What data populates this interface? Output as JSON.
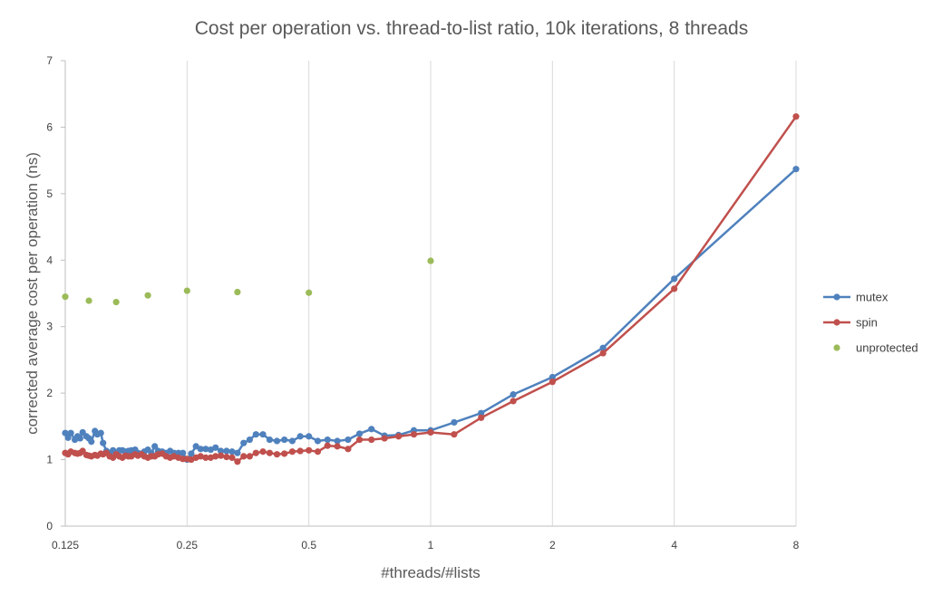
{
  "chart_data": {
    "type": "scatter",
    "title": "Cost per operation vs. thread-to-list ratio, 10k iterations, 8 threads",
    "xlabel": "#threads/#lists",
    "ylabel": "corrected average cost per operation (ns)",
    "x_scale": "log2",
    "xlim": [
      0.125,
      8
    ],
    "ylim": [
      0,
      7
    ],
    "x_ticks": [
      0.125,
      0.25,
      0.5,
      1,
      2,
      4,
      8
    ],
    "x_tick_labels": [
      "0.125",
      "0.25",
      "0.5",
      "1",
      "2",
      "4",
      "8"
    ],
    "y_ticks": [
      0,
      1,
      2,
      3,
      4,
      5,
      6,
      7
    ],
    "y_tick_labels": [
      "0",
      "1",
      "2",
      "3",
      "4",
      "5",
      "6",
      "7"
    ],
    "grid": "vertical",
    "legend_position": "right",
    "series": [
      {
        "name": "mutex",
        "color": "#4f81bd",
        "line": true,
        "points": [
          [
            0.125,
            1.4
          ],
          [
            0.127,
            1.33
          ],
          [
            0.129,
            1.4
          ],
          [
            0.132,
            1.3
          ],
          [
            0.134,
            1.35
          ],
          [
            0.136,
            1.32
          ],
          [
            0.138,
            1.41
          ],
          [
            0.141,
            1.35
          ],
          [
            0.143,
            1.32
          ],
          [
            0.145,
            1.27
          ],
          [
            0.148,
            1.43
          ],
          [
            0.15,
            1.38
          ],
          [
            0.153,
            1.4
          ],
          [
            0.155,
            1.25
          ],
          [
            0.158,
            1.13
          ],
          [
            0.161,
            1.1
          ],
          [
            0.164,
            1.14
          ],
          [
            0.167,
            1.08
          ],
          [
            0.17,
            1.14
          ],
          [
            0.173,
            1.14
          ],
          [
            0.176,
            1.12
          ],
          [
            0.179,
            1.13
          ],
          [
            0.182,
            1.14
          ],
          [
            0.186,
            1.15
          ],
          [
            0.189,
            1.1
          ],
          [
            0.193,
            1.09
          ],
          [
            0.196,
            1.12
          ],
          [
            0.2,
            1.15
          ],
          [
            0.204,
            1.1
          ],
          [
            0.208,
            1.2
          ],
          [
            0.212,
            1.13
          ],
          [
            0.217,
            1.12
          ],
          [
            0.222,
            1.1
          ],
          [
            0.227,
            1.13
          ],
          [
            0.232,
            1.1
          ],
          [
            0.238,
            1.1
          ],
          [
            0.244,
            1.1
          ],
          [
            0.25,
            1.0
          ],
          [
            0.256,
            1.09
          ],
          [
            0.263,
            1.2
          ],
          [
            0.27,
            1.16
          ],
          [
            0.278,
            1.16
          ],
          [
            0.286,
            1.15
          ],
          [
            0.294,
            1.18
          ],
          [
            0.303,
            1.13
          ],
          [
            0.313,
            1.13
          ],
          [
            0.323,
            1.12
          ],
          [
            0.333,
            1.1
          ],
          [
            0.345,
            1.25
          ],
          [
            0.357,
            1.3
          ],
          [
            0.37,
            1.38
          ],
          [
            0.385,
            1.38
          ],
          [
            0.4,
            1.3
          ],
          [
            0.417,
            1.28
          ],
          [
            0.435,
            1.3
          ],
          [
            0.455,
            1.28
          ],
          [
            0.476,
            1.35
          ],
          [
            0.5,
            1.35
          ],
          [
            0.526,
            1.28
          ],
          [
            0.556,
            1.3
          ],
          [
            0.588,
            1.28
          ],
          [
            0.625,
            1.3
          ],
          [
            0.667,
            1.39
          ],
          [
            0.714,
            1.46
          ],
          [
            0.769,
            1.36
          ],
          [
            0.833,
            1.37
          ],
          [
            0.909,
            1.44
          ],
          [
            1.0,
            1.44
          ],
          [
            1.143,
            1.56
          ],
          [
            1.333,
            1.7
          ],
          [
            1.6,
            1.98
          ],
          [
            2.0,
            2.24
          ],
          [
            2.667,
            2.68
          ],
          [
            4.0,
            3.72
          ],
          [
            8.0,
            5.37
          ]
        ]
      },
      {
        "name": "spin",
        "color": "#c0504d",
        "line": true,
        "points": [
          [
            0.125,
            1.1
          ],
          [
            0.127,
            1.08
          ],
          [
            0.129,
            1.12
          ],
          [
            0.132,
            1.1
          ],
          [
            0.134,
            1.09
          ],
          [
            0.136,
            1.1
          ],
          [
            0.138,
            1.13
          ],
          [
            0.141,
            1.07
          ],
          [
            0.143,
            1.06
          ],
          [
            0.145,
            1.05
          ],
          [
            0.148,
            1.07
          ],
          [
            0.15,
            1.06
          ],
          [
            0.153,
            1.09
          ],
          [
            0.155,
            1.08
          ],
          [
            0.158,
            1.1
          ],
          [
            0.161,
            1.05
          ],
          [
            0.164,
            1.03
          ],
          [
            0.167,
            1.08
          ],
          [
            0.17,
            1.05
          ],
          [
            0.173,
            1.03
          ],
          [
            0.176,
            1.06
          ],
          [
            0.179,
            1.05
          ],
          [
            0.182,
            1.05
          ],
          [
            0.186,
            1.08
          ],
          [
            0.189,
            1.06
          ],
          [
            0.193,
            1.08
          ],
          [
            0.196,
            1.05
          ],
          [
            0.2,
            1.03
          ],
          [
            0.204,
            1.05
          ],
          [
            0.208,
            1.05
          ],
          [
            0.212,
            1.08
          ],
          [
            0.217,
            1.09
          ],
          [
            0.222,
            1.05
          ],
          [
            0.227,
            1.03
          ],
          [
            0.232,
            1.05
          ],
          [
            0.238,
            1.03
          ],
          [
            0.244,
            1.01
          ],
          [
            0.25,
            1.01
          ],
          [
            0.256,
            1.0
          ],
          [
            0.263,
            1.03
          ],
          [
            0.27,
            1.05
          ],
          [
            0.278,
            1.03
          ],
          [
            0.286,
            1.03
          ],
          [
            0.294,
            1.05
          ],
          [
            0.303,
            1.06
          ],
          [
            0.313,
            1.04
          ],
          [
            0.323,
            1.03
          ],
          [
            0.333,
            0.97
          ],
          [
            0.345,
            1.05
          ],
          [
            0.357,
            1.05
          ],
          [
            0.37,
            1.1
          ],
          [
            0.385,
            1.12
          ],
          [
            0.4,
            1.1
          ],
          [
            0.417,
            1.08
          ],
          [
            0.435,
            1.09
          ],
          [
            0.455,
            1.12
          ],
          [
            0.476,
            1.13
          ],
          [
            0.5,
            1.14
          ],
          [
            0.526,
            1.12
          ],
          [
            0.556,
            1.21
          ],
          [
            0.588,
            1.2
          ],
          [
            0.625,
            1.16
          ],
          [
            0.667,
            1.3
          ],
          [
            0.714,
            1.3
          ],
          [
            0.769,
            1.32
          ],
          [
            0.833,
            1.35
          ],
          [
            0.909,
            1.38
          ],
          [
            1.0,
            1.41
          ],
          [
            1.143,
            1.38
          ],
          [
            1.333,
            1.63
          ],
          [
            1.6,
            1.88
          ],
          [
            2.0,
            2.17
          ],
          [
            2.667,
            2.6
          ],
          [
            4.0,
            3.57
          ],
          [
            8.0,
            6.16
          ]
        ]
      },
      {
        "name": "unprotected",
        "color": "#9bbb59",
        "line": false,
        "points": [
          [
            0.125,
            3.45
          ],
          [
            0.143,
            3.39
          ],
          [
            0.167,
            3.37
          ],
          [
            0.2,
            3.47
          ],
          [
            0.25,
            3.54
          ],
          [
            0.333,
            3.52
          ],
          [
            0.5,
            3.51
          ],
          [
            1.0,
            3.99
          ]
        ]
      }
    ]
  }
}
